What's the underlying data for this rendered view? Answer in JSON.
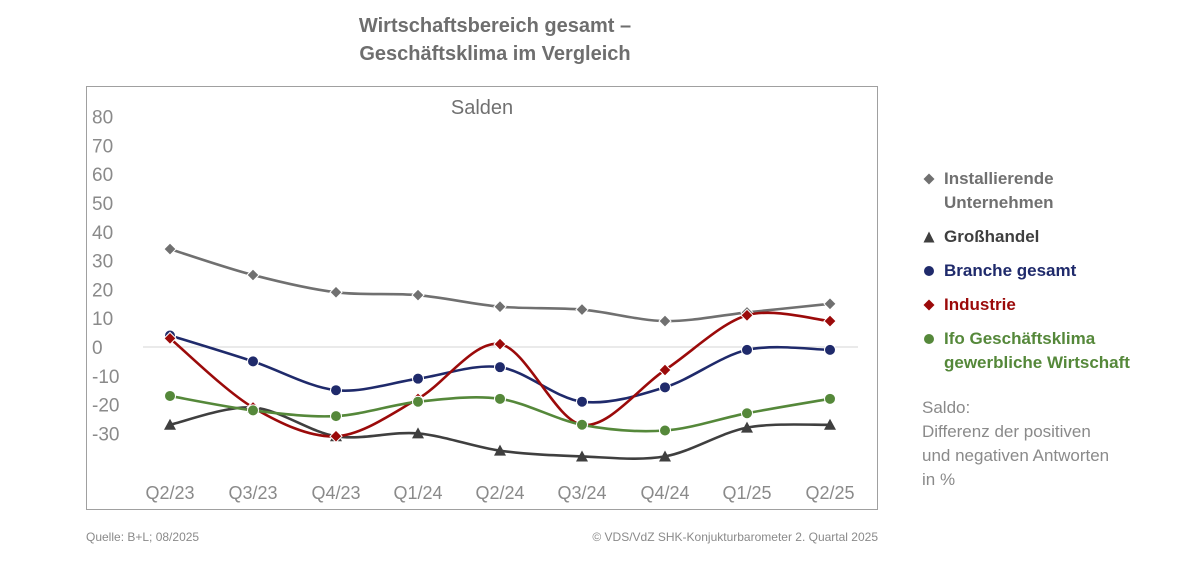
{
  "title_lines": [
    "Wirtschaftsbereich gesamt –",
    "Geschäftsklima im Vergleich"
  ],
  "legend": {
    "items": [
      {
        "lines": [
          "Installierende",
          "Unternehmen"
        ],
        "marker": "diamond",
        "color": "#707070"
      },
      {
        "lines": [
          "Großhandel"
        ],
        "marker": "triangle",
        "color": "#3f3f3f"
      },
      {
        "lines": [
          "Branche gesamt"
        ],
        "marker": "circle",
        "color": "#1f2a6b"
      },
      {
        "lines": [
          "Industrie"
        ],
        "marker": "diamond",
        "color": "#9b0a0a"
      },
      {
        "lines": [
          "Ifo Geschäftsklima",
          "gewerbliche Wirtschaft"
        ],
        "marker": "circle",
        "color": "#55883a"
      }
    ]
  },
  "note_lines": [
    "Saldo:",
    "Differenz der positiven",
    "und negativen Antworten",
    "in %"
  ],
  "footer": {
    "source": "Quelle: B+L; 08/2025",
    "copyright": "© VDS/VdZ SHK-Konjukturbarometer 2. Quartal 2025"
  },
  "chart_data": {
    "type": "line",
    "title": "Salden",
    "categories": [
      "Q2/23",
      "Q3/23",
      "Q4/23",
      "Q1/24",
      "Q2/24",
      "Q3/24",
      "Q4/24",
      "Q1/25",
      "Q2/25"
    ],
    "y_ticks": [
      "80",
      "70",
      "60",
      "50",
      "40",
      "30",
      "20",
      "10",
      "0",
      "-10",
      "-20",
      "-30"
    ],
    "y_tick_values": [
      80,
      70,
      60,
      50,
      40,
      30,
      20,
      10,
      0,
      -10,
      -20,
      -30
    ],
    "ylim": [
      -40,
      80
    ],
    "zero_line": true,
    "series": [
      {
        "name": "Installierende Unternehmen",
        "marker": "diamond",
        "color": "#707070",
        "values": [
          34,
          25,
          19,
          18,
          14,
          13,
          9,
          12,
          15
        ]
      },
      {
        "name": "Großhandel",
        "marker": "triangle",
        "color": "#3f3f3f",
        "values": [
          -27,
          -21,
          -31,
          -30,
          -36,
          -38,
          -38,
          -28,
          -27
        ]
      },
      {
        "name": "Branche gesamt",
        "marker": "circle",
        "color": "#1f2a6b",
        "values": [
          4,
          -5,
          -15,
          -11,
          -7,
          -19,
          -14,
          -1,
          -1
        ]
      },
      {
        "name": "Industrie",
        "marker": "diamond",
        "color": "#9b0a0a",
        "values": [
          3,
          -21,
          -31,
          -18,
          1,
          -27,
          -8,
          11,
          9
        ]
      },
      {
        "name": "Ifo Geschäftsklima gewerbliche Wirtschaft",
        "marker": "circle",
        "color": "#55883a",
        "values": [
          -17,
          -22,
          -24,
          -19,
          -18,
          -27,
          -29,
          -23,
          -18
        ]
      }
    ]
  }
}
